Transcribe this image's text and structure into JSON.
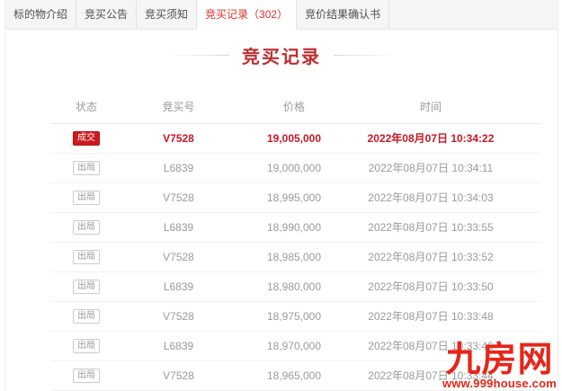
{
  "tabs": [
    {
      "label": "标的物介绍",
      "active": false
    },
    {
      "label": "竞买公告",
      "active": false
    },
    {
      "label": "竞买须知",
      "active": false
    },
    {
      "label": "竞买记录（302）",
      "active": true
    },
    {
      "label": "竞价结果确认书",
      "active": false
    }
  ],
  "section_title": "竞买记录",
  "table": {
    "headers": [
      "状态",
      "竞买号",
      "价格",
      "时间"
    ],
    "rows": [
      {
        "status": "成交",
        "bidder": "V7528",
        "price": "19,005,000",
        "time": "2022年08月07日 10:34:22",
        "highlight": true
      },
      {
        "status": "出局",
        "bidder": "L6839",
        "price": "19,000,000",
        "time": "2022年08月07日 10:34:11",
        "highlight": false
      },
      {
        "status": "出局",
        "bidder": "V7528",
        "price": "18,995,000",
        "time": "2022年08月07日 10:34:03",
        "highlight": false
      },
      {
        "status": "出局",
        "bidder": "L6839",
        "price": "18,990,000",
        "time": "2022年08月07日 10:33:55",
        "highlight": false
      },
      {
        "status": "出局",
        "bidder": "V7528",
        "price": "18,985,000",
        "time": "2022年08月07日 10:33:52",
        "highlight": false
      },
      {
        "status": "出局",
        "bidder": "L6839",
        "price": "18,980,000",
        "time": "2022年08月07日 10:33:50",
        "highlight": false
      },
      {
        "status": "出局",
        "bidder": "V7528",
        "price": "18,975,000",
        "time": "2022年08月07日 10:33:48",
        "highlight": false
      },
      {
        "status": "出局",
        "bidder": "L6839",
        "price": "18,970,000",
        "time": "2022年08月07日 10:33:46",
        "highlight": false
      },
      {
        "status": "出局",
        "bidder": "V7528",
        "price": "18,965,000",
        "time": "2022年08月07日 10:33:44",
        "highlight": false
      }
    ]
  },
  "watermark": {
    "logo": "九房网",
    "url": "www.999house.com"
  },
  "colors": {
    "accent_red": "#c81623",
    "badge_deal_bg": "#ce1a1d",
    "title_red": "#bf2c31",
    "tab_active_red": "#dc3026",
    "watermark_red": "#e52619",
    "tabbar_bg": "#f5f5f5"
  }
}
